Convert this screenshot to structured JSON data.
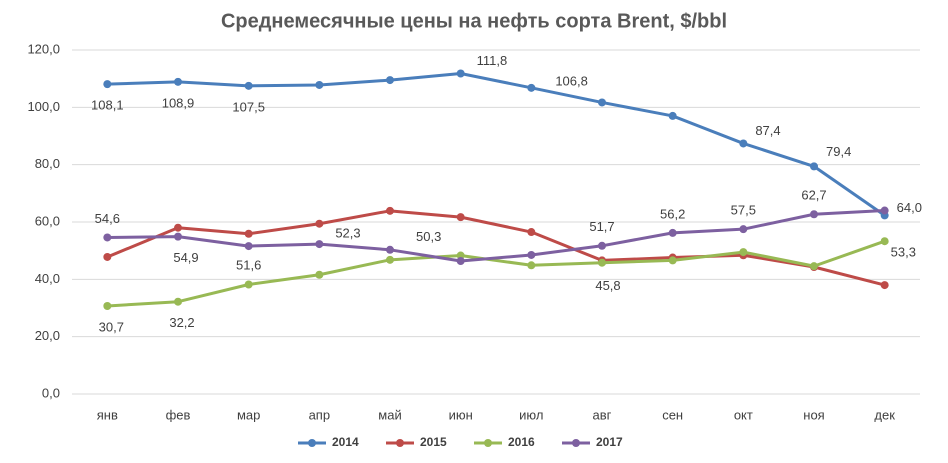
{
  "chart_data": {
    "type": "line",
    "title": "Среднемесячные цены на нефть сорта Brent, $/bbl",
    "categories": [
      "янв",
      "фев",
      "мар",
      "апр",
      "май",
      "июн",
      "июл",
      "авг",
      "сен",
      "окт",
      "ноя",
      "дек"
    ],
    "ylim": [
      0,
      120
    ],
    "yticks": [
      {
        "value": 0,
        "label": "0,0"
      },
      {
        "value": 20,
        "label": "20,0"
      },
      {
        "value": 40,
        "label": "40,0"
      },
      {
        "value": 60,
        "label": "60,0"
      },
      {
        "value": 80,
        "label": "80,0"
      },
      {
        "value": 100,
        "label": "100,0"
      },
      {
        "value": 120,
        "label": "120,0"
      }
    ],
    "grid": true,
    "legend": "bottom",
    "series": [
      {
        "name": "2014",
        "color": "#4a7ebb",
        "values": [
          108.1,
          108.9,
          107.5,
          107.8,
          109.5,
          111.8,
          106.8,
          101.7,
          97.0,
          87.4,
          79.4,
          62.3
        ],
        "value_labels": [
          "108,1",
          "108,9",
          "107,5",
          null,
          null,
          "111,8",
          "106,8",
          null,
          null,
          "87,4",
          "79,4",
          null
        ]
      },
      {
        "name": "2015",
        "color": "#be4b48",
        "values": [
          47.8,
          58.0,
          55.9,
          59.4,
          63.9,
          61.7,
          56.5,
          46.6,
          47.6,
          48.4,
          44.3,
          38.0
        ]
      },
      {
        "name": "2016",
        "color": "#98b954",
        "values": [
          30.7,
          32.2,
          38.2,
          41.6,
          46.8,
          48.3,
          44.9,
          45.8,
          46.6,
          49.5,
          44.6,
          53.3
        ],
        "value_labels": [
          "30,7",
          "32,2",
          null,
          null,
          null,
          null,
          null,
          "45,8",
          null,
          null,
          null,
          "53,3"
        ]
      },
      {
        "name": "2017",
        "color": "#7d60a0",
        "values": [
          54.6,
          54.9,
          51.6,
          52.3,
          50.3,
          46.4,
          48.5,
          51.7,
          56.2,
          57.5,
          62.7,
          64.0
        ],
        "value_labels": [
          "54,6",
          "54,9",
          "51,6",
          "52,3",
          "50,3",
          null,
          null,
          "51,7",
          "56,2",
          "57,5",
          "62,7",
          "64,0"
        ]
      }
    ]
  }
}
